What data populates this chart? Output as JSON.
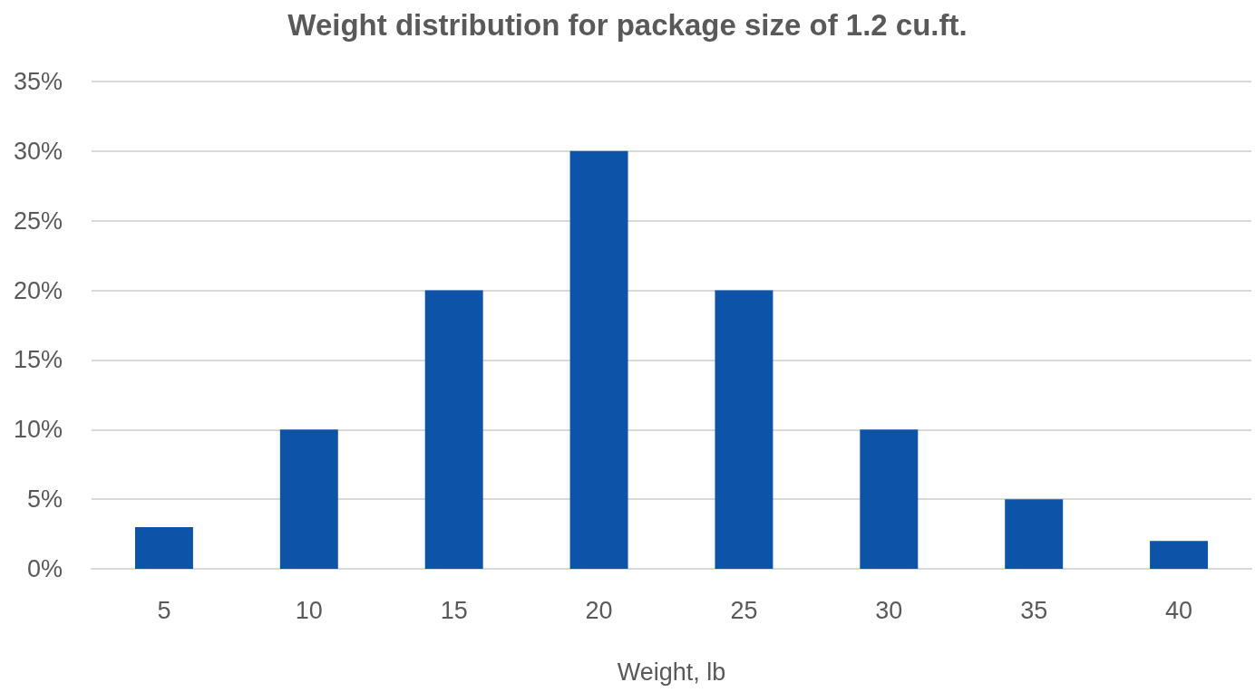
{
  "chart_data": {
    "type": "bar",
    "title": "Weight distribution for package size of 1.2 cu.ft.",
    "xlabel": "Weight, lb",
    "categories": [
      "5",
      "10",
      "15",
      "20",
      "25",
      "30",
      "35",
      "40"
    ],
    "values": [
      3,
      10,
      20,
      30,
      20,
      10,
      5,
      2
    ],
    "color": "#0d54a8",
    "ylim": [
      0,
      35
    ],
    "yticks": [
      {
        "value": 0,
        "label": "0%"
      },
      {
        "value": 5,
        "label": "5%"
      },
      {
        "value": 10,
        "label": "10%"
      },
      {
        "value": 15,
        "label": "15%"
      },
      {
        "value": 20,
        "label": "20%"
      },
      {
        "value": 25,
        "label": "25%"
      },
      {
        "value": 30,
        "label": "30%"
      },
      {
        "value": 35,
        "label": "35%"
      }
    ],
    "grid": "y"
  }
}
